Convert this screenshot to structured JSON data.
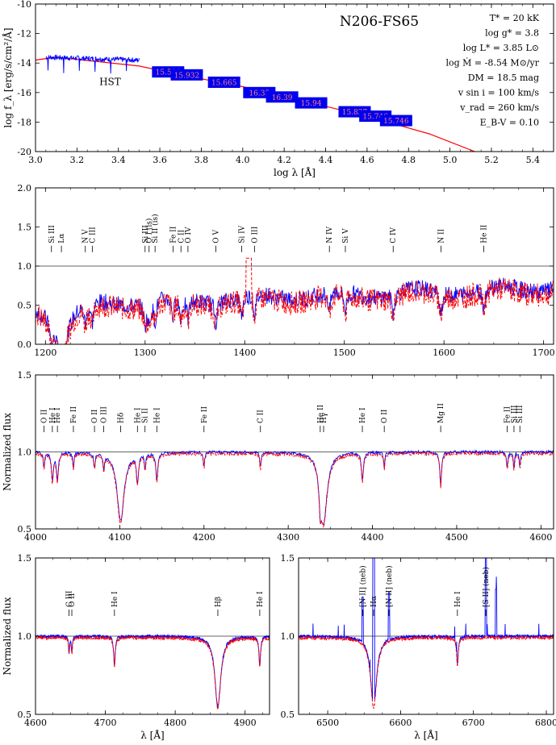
{
  "chart_data": [
    {
      "id": "sed",
      "type": "line",
      "title": "N206-FS65",
      "xlabel": "log λ [Å]",
      "ylabel": "log f_λ [erg/s/cm²/Å]",
      "xlim": [
        3.0,
        5.5
      ],
      "ylim": [
        -20,
        -10
      ],
      "xticks": [
        3.0,
        3.2,
        3.4,
        3.6,
        3.8,
        4.0,
        4.2,
        4.4,
        4.6,
        4.8,
        5.0,
        5.2,
        5.4
      ],
      "yticks": [
        -20,
        -18,
        -16,
        -14,
        -12,
        -10
      ],
      "annotation": "HST",
      "parameters": [
        "T* = 20 kK",
        "log g* = 3.8",
        "log L* = 3.85 L⊙",
        "log Ṁ = -8.54 M⊙/yr",
        "DM = 18.5 mag",
        "v sin i = 100 km/s",
        "v_rad = 260 km/s",
        "E_B-V = 0.10"
      ],
      "photometry": [
        {
          "x": 3.64,
          "y": -14.6,
          "label": "15.590"
        },
        {
          "x": 3.73,
          "y": -14.8,
          "label": "15.932"
        },
        {
          "x": 3.91,
          "y": -15.3,
          "label": "15.665"
        },
        {
          "x": 4.08,
          "y": -16.0,
          "label": "16.35"
        },
        {
          "x": 4.19,
          "y": -16.3,
          "label": "16.39"
        },
        {
          "x": 4.33,
          "y": -16.7,
          "label": "15.94"
        },
        {
          "x": 4.54,
          "y": -17.3,
          "label": "15.837"
        },
        {
          "x": 4.64,
          "y": -17.6,
          "label": "15.746"
        },
        {
          "x": 4.74,
          "y": -17.9,
          "label": "15.746"
        }
      ],
      "model": {
        "x": [
          3.0,
          3.1,
          3.5,
          3.7,
          4.0,
          4.3,
          4.6,
          4.9,
          5.12
        ],
        "y": [
          -13.8,
          -13.6,
          -14.2,
          -14.8,
          -15.6,
          -16.6,
          -17.6,
          -18.8,
          -20.0
        ]
      },
      "observed": {
        "x": [
          3.05,
          3.1,
          3.2,
          3.3,
          3.4,
          3.5
        ],
        "y": [
          -13.8,
          -13.6,
          -13.7,
          -13.9,
          -14.1,
          -14.3
        ]
      }
    },
    {
      "id": "uv",
      "type": "line",
      "xlim": [
        1190,
        1710
      ],
      "ylim": [
        0.0,
        2.0
      ],
      "xticks": [
        1200,
        1300,
        1400,
        1500,
        1600,
        1700
      ],
      "yticks": [
        0.0,
        0.5,
        1.0,
        1.5,
        2.0
      ],
      "continuum": 1.0,
      "lines": [
        {
          "x": 1206,
          "label": "Si III",
          "color": "#000000"
        },
        {
          "x": 1216,
          "label": "Lα",
          "color": "#000000"
        },
        {
          "x": 1240,
          "label": "N V",
          "color": "#0000ff"
        },
        {
          "x": 1247,
          "label": "C III",
          "color": "#000000"
        },
        {
          "x": 1300,
          "label": "Si III",
          "color": "#000000"
        },
        {
          "x": 1304,
          "label": "O I (is)",
          "color": "#000000"
        },
        {
          "x": 1310,
          "label": "Si II (is)",
          "color": "#000000"
        },
        {
          "x": 1328,
          "label": "Fe II",
          "color": "#000000"
        },
        {
          "x": 1336,
          "label": "C II",
          "color": "#000000"
        },
        {
          "x": 1343,
          "label": "O IV",
          "color": "#0000ff"
        },
        {
          "x": 1371,
          "label": "O V",
          "color": "#000000"
        },
        {
          "x": 1397,
          "label": "Si IV",
          "color": "#0000ff"
        },
        {
          "x": 1410,
          "label": "O III",
          "color": "#000000"
        },
        {
          "x": 1485,
          "label": "N IV",
          "color": "#000000"
        },
        {
          "x": 1501,
          "label": "Si V",
          "color": "#000000"
        },
        {
          "x": 1549,
          "label": "C IV",
          "color": "#0000ff"
        },
        {
          "x": 1597,
          "label": "N II",
          "color": "#000000"
        },
        {
          "x": 1640,
          "label": "He II",
          "color": "#000000"
        }
      ]
    },
    {
      "id": "optical",
      "type": "line",
      "ylabel": "Normalized flux",
      "xlim": [
        4000,
        4615
      ],
      "ylim": [
        0.5,
        1.5
      ],
      "xticks": [
        4000,
        4100,
        4200,
        4300,
        4400,
        4500,
        4600
      ],
      "yticks": [
        0.5,
        1.0,
        1.5
      ],
      "continuum": 1.0,
      "lines": [
        {
          "x": 4010,
          "label": "O II"
        },
        {
          "x": 4020,
          "label": "He I"
        },
        {
          "x": 4026,
          "label": "He I"
        },
        {
          "x": 4045,
          "label": "Fe II"
        },
        {
          "x": 4070,
          "label": "O II"
        },
        {
          "x": 4081,
          "label": "O III"
        },
        {
          "x": 4101,
          "label": "Hδ"
        },
        {
          "x": 4121,
          "label": "He I"
        },
        {
          "x": 4130,
          "label": "Si II"
        },
        {
          "x": 4144,
          "label": "He I"
        },
        {
          "x": 4200,
          "label": "Fe II"
        },
        {
          "x": 4267,
          "label": "C II"
        },
        {
          "x": 4338,
          "label": "He II"
        },
        {
          "x": 4342,
          "label": "Hγ"
        },
        {
          "x": 4388,
          "label": "He I"
        },
        {
          "x": 4414,
          "label": "O II"
        },
        {
          "x": 4481,
          "label": "Mg II"
        },
        {
          "x": 4560,
          "label": "Fe II"
        },
        {
          "x": 4568,
          "label": "Si III"
        },
        {
          "x": 4575,
          "label": "Si III"
        }
      ]
    },
    {
      "id": "hbeta",
      "type": "line",
      "xlabel": "λ [Å]",
      "ylabel": "Normalized flux",
      "xlim": [
        4600,
        4935
      ],
      "ylim": [
        0.5,
        1.5
      ],
      "xticks": [
        4600,
        4700,
        4800,
        4900
      ],
      "yticks": [
        0.5,
        1.0,
        1.5
      ],
      "continuum": 1.0,
      "lines": [
        {
          "x": 4648,
          "label": "C III"
        },
        {
          "x": 4652,
          "label": "O II"
        },
        {
          "x": 4713,
          "label": "He I"
        },
        {
          "x": 4861,
          "label": "Hβ"
        },
        {
          "x": 4921,
          "label": "He I"
        }
      ]
    },
    {
      "id": "halpha",
      "type": "line",
      "xlabel": "λ [Å]",
      "xlim": [
        6460,
        6810
      ],
      "ylim": [
        0.5,
        1.5
      ],
      "xticks": [
        6500,
        6600,
        6700,
        6800
      ],
      "yticks": [
        0.5,
        1.0,
        1.5
      ],
      "continuum": 1.0,
      "lines": [
        {
          "x": 6548,
          "label": "[N II] (neb)"
        },
        {
          "x": 6563,
          "label": "Hα"
        },
        {
          "x": 6584,
          "label": "[N II] (neb)"
        },
        {
          "x": 6678,
          "label": "He I"
        },
        {
          "x": 6717,
          "label": "[S II] (neb)"
        }
      ]
    }
  ]
}
